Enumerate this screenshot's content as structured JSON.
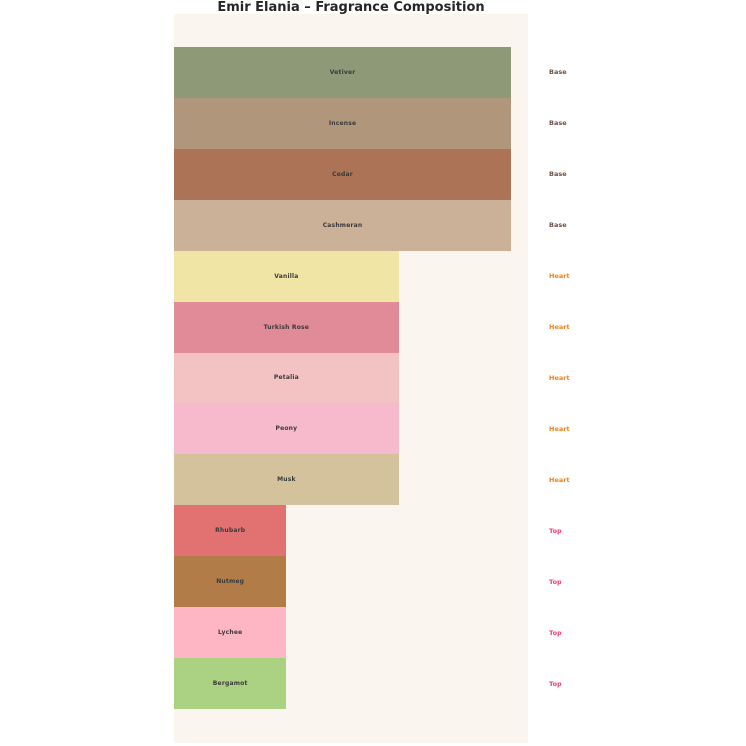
{
  "page": {
    "title": "Emir Elania – Fragrance Composition"
  },
  "chart_data": {
    "type": "bar",
    "orientation": "horizontal",
    "title": "Emir Elania – Fragrance Composition",
    "xlabel": "",
    "ylabel": "",
    "xlim": [
      0,
      3.15
    ],
    "grid": false,
    "legend": false,
    "plot_background": "#faf6ef",
    "page_background": "#ffffff",
    "bar_label_color": "#3a3a3a",
    "group_label_colors": {
      "Base": "#6b5045",
      "Heart": "#f0821e",
      "Top": "#ee3d7d"
    },
    "bars": [
      {
        "label": "Vetiver",
        "group": "Base",
        "value": 3,
        "color": "#8d9977"
      },
      {
        "label": "Incense",
        "group": "Base",
        "value": 3,
        "color": "#b0967a"
      },
      {
        "label": "Cedar",
        "group": "Base",
        "value": 3,
        "color": "#ac7357"
      },
      {
        "label": "Cashmeran",
        "group": "Base",
        "value": 3,
        "color": "#cab198"
      },
      {
        "label": "Vanilla",
        "group": "Heart",
        "value": 2,
        "color": "#f0e5a4"
      },
      {
        "label": "Turkish Rose",
        "group": "Heart",
        "value": 2,
        "color": "#e18b99"
      },
      {
        "label": "Petalia",
        "group": "Heart",
        "value": 2,
        "color": "#f3c3c4"
      },
      {
        "label": "Peony",
        "group": "Heart",
        "value": 2,
        "color": "#f7b9cc"
      },
      {
        "label": "Musk",
        "group": "Heart",
        "value": 2,
        "color": "#d4c29c"
      },
      {
        "label": "Rhubarb",
        "group": "Top",
        "value": 1,
        "color": "#e27171"
      },
      {
        "label": "Nutmeg",
        "group": "Top",
        "value": 1,
        "color": "#b27c48"
      },
      {
        "label": "Lychee",
        "group": "Top",
        "value": 1,
        "color": "#ffb6c4"
      },
      {
        "label": "Bergamot",
        "group": "Top",
        "value": 1,
        "color": "#aad282"
      }
    ]
  }
}
